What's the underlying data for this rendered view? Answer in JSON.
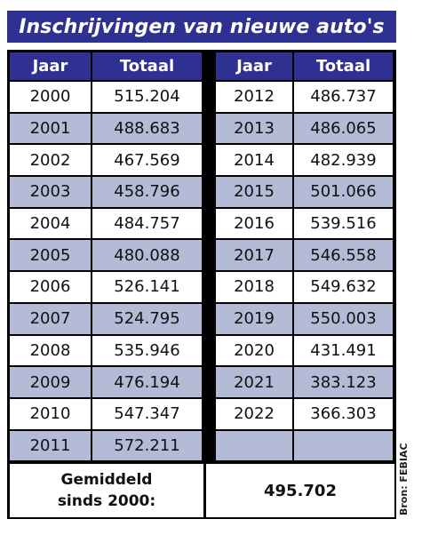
{
  "title": "Inschrijvingen van nieuwe auto's",
  "chart_data": {
    "type": "table",
    "title": "Inschrijvingen van nieuwe auto's",
    "columns": [
      "Jaar",
      "Totaal"
    ],
    "left_rows": [
      [
        "2000",
        "515.204"
      ],
      [
        "2001",
        "488.683"
      ],
      [
        "2002",
        "467.569"
      ],
      [
        "2003",
        "458.796"
      ],
      [
        "2004",
        "484.757"
      ],
      [
        "2005",
        "480.088"
      ],
      [
        "2006",
        "526.141"
      ],
      [
        "2007",
        "524.795"
      ],
      [
        "2008",
        "535.946"
      ],
      [
        "2009",
        "476.194"
      ],
      [
        "2010",
        "547.347"
      ],
      [
        "2011",
        "572.211"
      ]
    ],
    "right_rows": [
      [
        "2012",
        "486.737"
      ],
      [
        "2013",
        "486.065"
      ],
      [
        "2014",
        "482.939"
      ],
      [
        "2015",
        "501.066"
      ],
      [
        "2016",
        "539.516"
      ],
      [
        "2017",
        "546.558"
      ],
      [
        "2018",
        "549.632"
      ],
      [
        "2019",
        "550.003"
      ],
      [
        "2020",
        "431.491"
      ],
      [
        "2021",
        "383.123"
      ],
      [
        "2022",
        "366.303"
      ],
      [
        "",
        ""
      ]
    ],
    "average_label_line1": "Gemiddeld",
    "average_label_line2": "sinds 2000:",
    "average_value": "495.702"
  },
  "source": "Bron: FEBIAC",
  "colors": {
    "header": "#2e3192",
    "stripe": "#b3bbd7",
    "row": "#ffffff"
  }
}
